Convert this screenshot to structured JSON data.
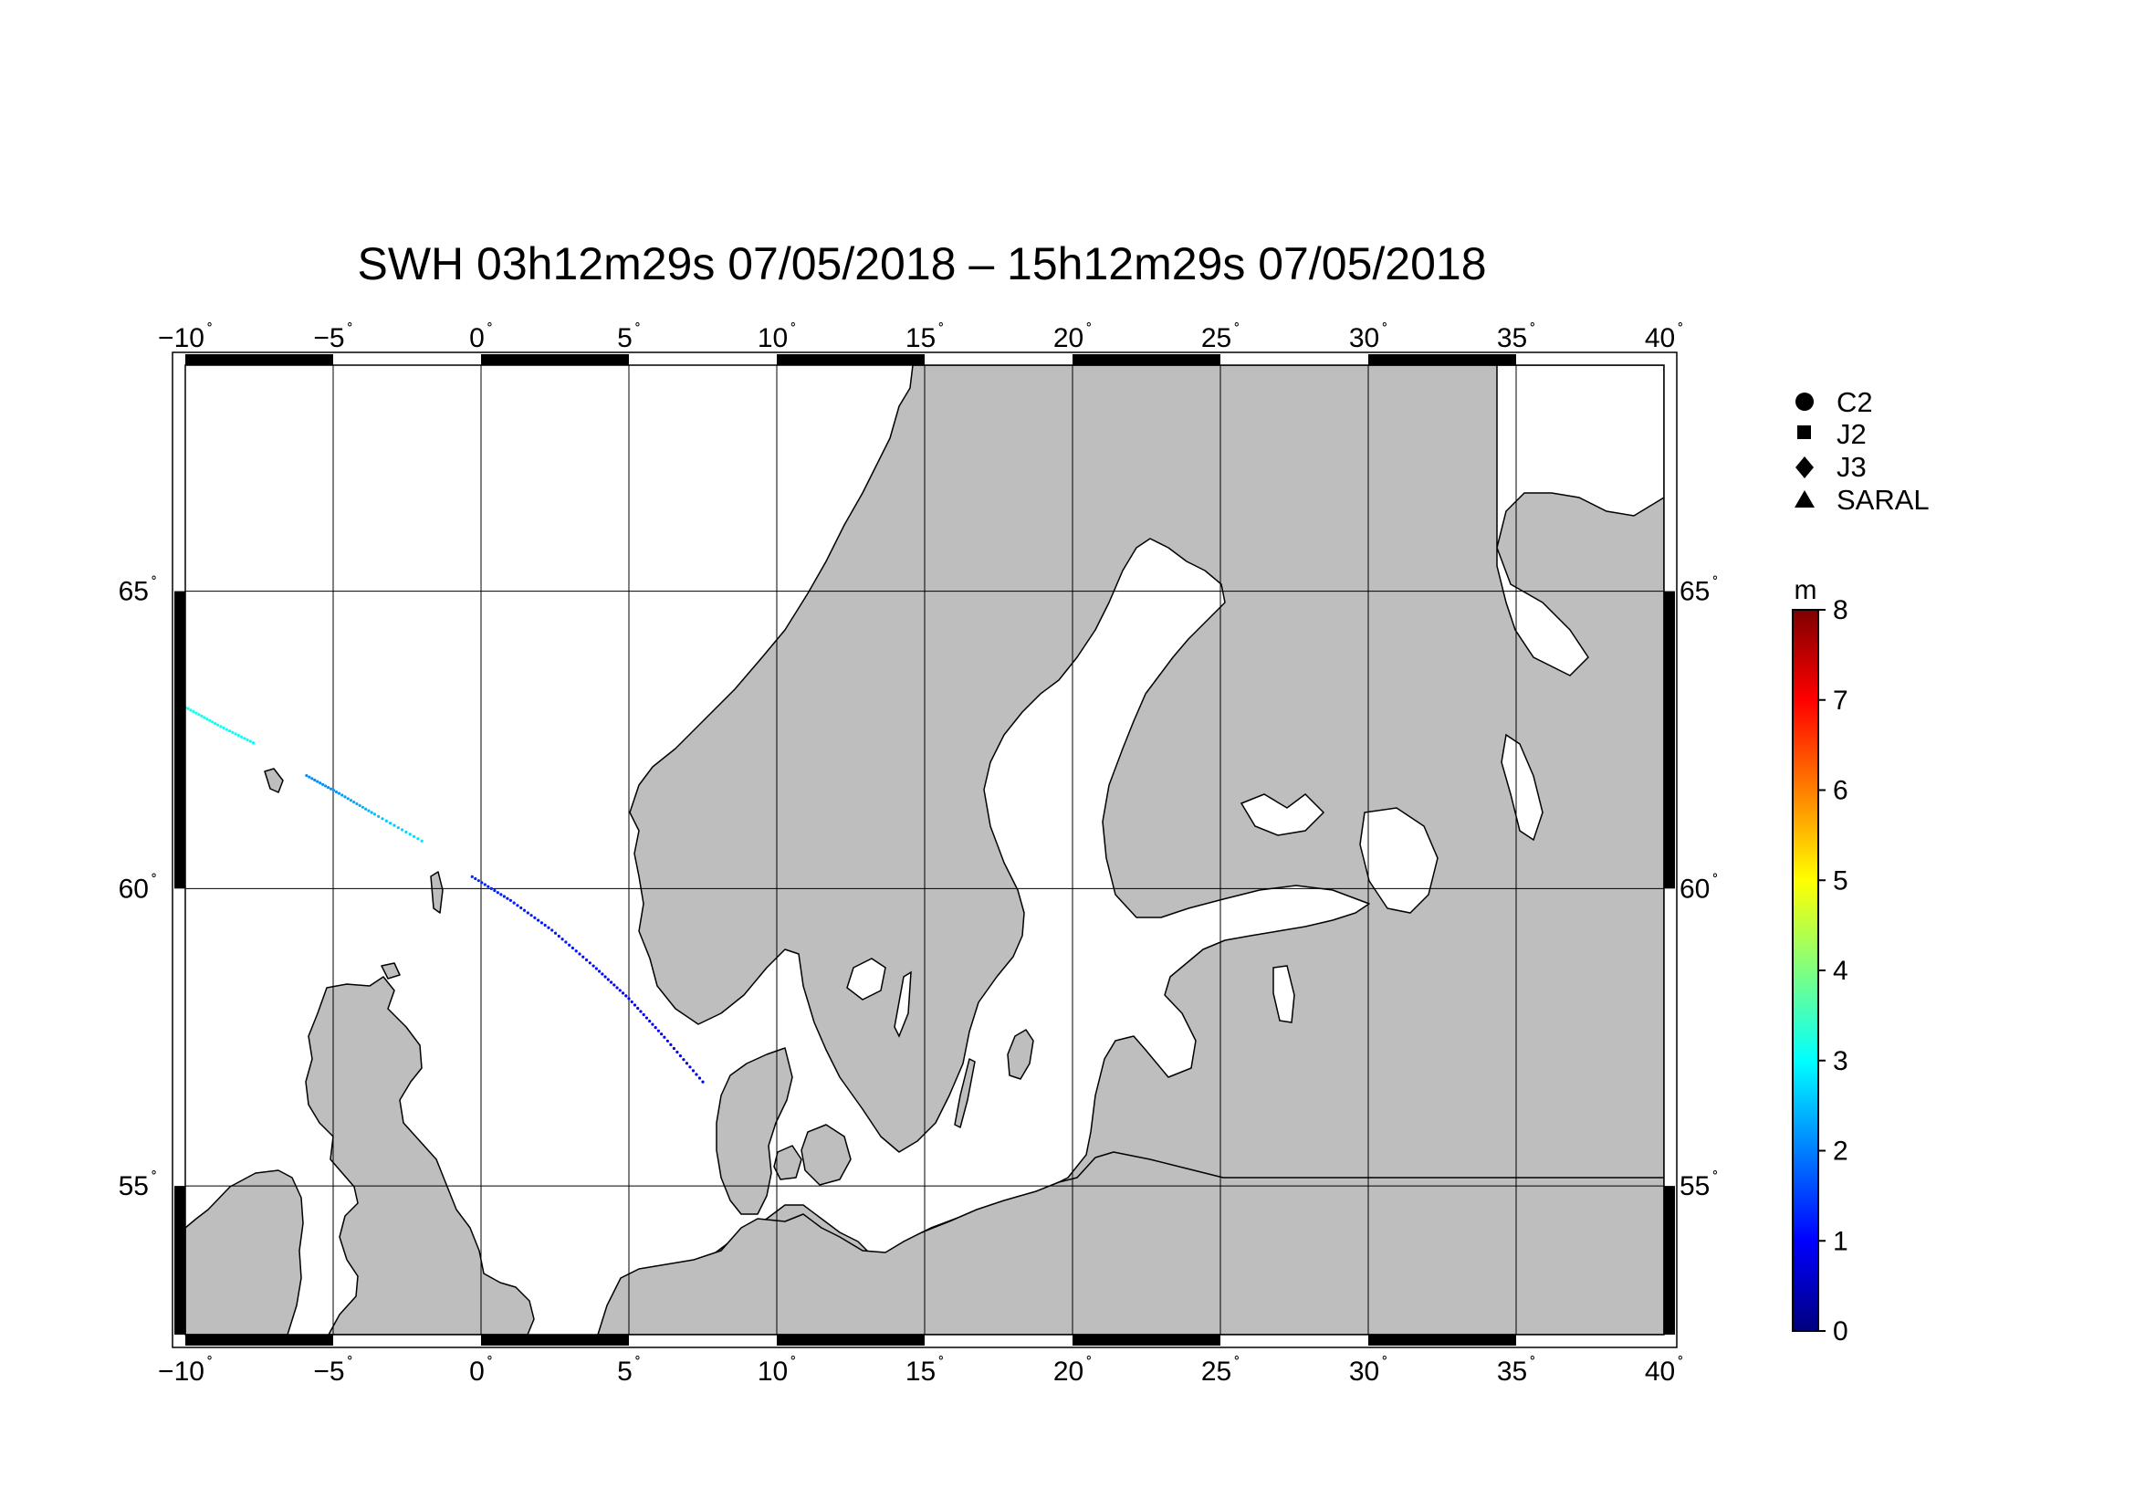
{
  "title": "SWH 03h12m29s 07/05/2018 – 15h12m29s 07/05/2018",
  "map": {
    "lon_range": [
      -10,
      40
    ],
    "lat_range": [
      52.5,
      68.8
    ],
    "lon_ticks": [
      {
        "value": -10,
        "label": "−10"
      },
      {
        "value": -5,
        "label": "−5"
      },
      {
        "value": 0,
        "label": "0"
      },
      {
        "value": 5,
        "label": "5"
      },
      {
        "value": 10,
        "label": "10"
      },
      {
        "value": 15,
        "label": "15"
      },
      {
        "value": 20,
        "label": "20"
      },
      {
        "value": 25,
        "label": "25"
      },
      {
        "value": 30,
        "label": "30"
      },
      {
        "value": 35,
        "label": "35"
      },
      {
        "value": 40,
        "label": "40"
      }
    ],
    "lat_ticks": [
      {
        "value": 55,
        "label": "55"
      },
      {
        "value": 60,
        "label": "60"
      },
      {
        "value": 65,
        "label": "65"
      }
    ],
    "degree_symbol": "˚",
    "land_color": "#bebebe",
    "sea_color": "#ffffff",
    "grid_color": "#000000"
  },
  "legend": {
    "items": [
      {
        "symbol": "circle",
        "label": "C2"
      },
      {
        "symbol": "square",
        "label": "J2"
      },
      {
        "symbol": "diamond",
        "label": "J3"
      },
      {
        "symbol": "triangle",
        "label": "SARAL"
      }
    ]
  },
  "colorbar": {
    "unit": "m",
    "min": 0,
    "max": 8,
    "ticks": [
      "0",
      "1",
      "2",
      "3",
      "4",
      "5",
      "6",
      "7",
      "8"
    ],
    "colors": [
      "#00007f",
      "#0000ff",
      "#007fff",
      "#00ffff",
      "#7fff7f",
      "#ffff00",
      "#ff7f00",
      "#ff0000",
      "#7f0000"
    ]
  },
  "chart_data": {
    "type": "scatter",
    "title": "SWH 03h12m29s 07/05/2018 – 15h12m29s 07/05/2018",
    "xlabel": "",
    "ylabel": "",
    "xlim": [
      -10,
      40
    ],
    "ylim": [
      52.5,
      68.8
    ],
    "color_scale": {
      "unit": "m",
      "range": [
        0,
        8
      ]
    },
    "series": [
      {
        "points": [
          {
            "lon": -10.0,
            "lat": 63.05,
            "swh": 3.2
          },
          {
            "lon": -8.9,
            "lat": 62.75,
            "swh": 3.1
          },
          {
            "lon": -7.7,
            "lat": 62.45,
            "swh": 3.0
          }
        ]
      },
      {
        "points": [
          {
            "lon": -5.9,
            "lat": 61.9,
            "swh": 2.1
          },
          {
            "lon": -4.8,
            "lat": 61.6,
            "swh": 2.2
          },
          {
            "lon": -3.6,
            "lat": 61.25,
            "swh": 2.5
          },
          {
            "lon": -2.0,
            "lat": 60.8,
            "swh": 2.8
          }
        ]
      },
      {
        "points": [
          {
            "lon": -0.3,
            "lat": 60.2,
            "swh": 1.3
          },
          {
            "lon": 1.0,
            "lat": 59.8,
            "swh": 1.2
          },
          {
            "lon": 2.4,
            "lat": 59.3,
            "swh": 1.2
          },
          {
            "lon": 3.8,
            "lat": 58.7,
            "swh": 1.1
          },
          {
            "lon": 5.0,
            "lat": 58.15,
            "swh": 1.0
          },
          {
            "lon": 6.2,
            "lat": 57.5,
            "swh": 1.0
          },
          {
            "lon": 7.5,
            "lat": 56.75,
            "swh": 0.9
          }
        ]
      }
    ]
  }
}
